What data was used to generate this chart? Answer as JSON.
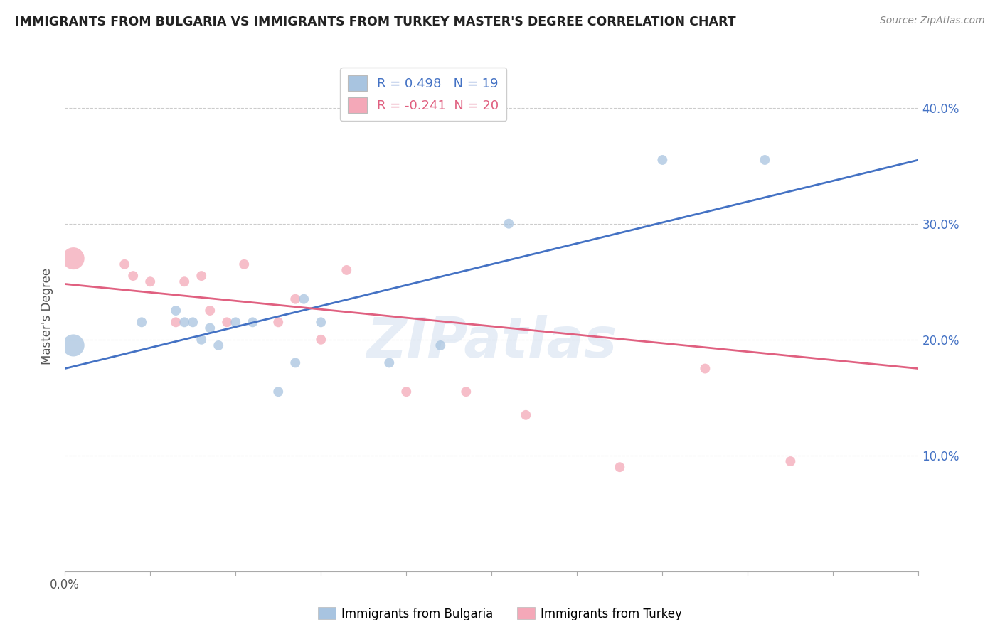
{
  "title": "IMMIGRANTS FROM BULGARIA VS IMMIGRANTS FROM TURKEY MASTER'S DEGREE CORRELATION CHART",
  "source": "Source: ZipAtlas.com",
  "ylabel": "Master's Degree",
  "xlim": [
    0.0,
    0.1
  ],
  "ylim": [
    0.0,
    0.44
  ],
  "bulgaria_color": "#a8c4e0",
  "turkey_color": "#f4a8b8",
  "bulgaria_line_color": "#4472c4",
  "turkey_line_color": "#e06080",
  "R_bulgaria": 0.498,
  "N_bulgaria": 19,
  "R_turkey": -0.241,
  "N_turkey": 20,
  "legend_label1": "Immigrants from Bulgaria",
  "legend_label2": "Immigrants from Turkey",
  "bulgaria_x": [
    0.001,
    0.009,
    0.013,
    0.014,
    0.015,
    0.016,
    0.017,
    0.018,
    0.02,
    0.022,
    0.025,
    0.027,
    0.028,
    0.03,
    0.038,
    0.044,
    0.052,
    0.07,
    0.082
  ],
  "bulgaria_y": [
    0.195,
    0.215,
    0.225,
    0.215,
    0.215,
    0.2,
    0.21,
    0.195,
    0.215,
    0.215,
    0.155,
    0.18,
    0.235,
    0.215,
    0.18,
    0.195,
    0.3,
    0.355,
    0.355
  ],
  "bulgaria_size": [
    500,
    100,
    100,
    100,
    100,
    100,
    100,
    100,
    100,
    100,
    100,
    100,
    100,
    100,
    100,
    100,
    100,
    100,
    100
  ],
  "turkey_x": [
    0.001,
    0.007,
    0.008,
    0.01,
    0.013,
    0.014,
    0.016,
    0.017,
    0.019,
    0.021,
    0.025,
    0.027,
    0.03,
    0.033,
    0.04,
    0.047,
    0.054,
    0.065,
    0.075,
    0.085
  ],
  "turkey_y": [
    0.27,
    0.265,
    0.255,
    0.25,
    0.215,
    0.25,
    0.255,
    0.225,
    0.215,
    0.265,
    0.215,
    0.235,
    0.2,
    0.26,
    0.155,
    0.155,
    0.135,
    0.09,
    0.175,
    0.095
  ],
  "turkey_size": [
    500,
    100,
    100,
    100,
    100,
    100,
    100,
    100,
    100,
    100,
    100,
    100,
    100,
    100,
    100,
    100,
    100,
    100,
    100,
    100
  ],
  "watermark": "ZIPatlas",
  "grid_color": "#cccccc",
  "background_color": "#ffffff",
  "ytick_values": [
    0.0,
    0.1,
    0.2,
    0.3,
    0.4
  ],
  "xtick_values": [
    0.0,
    0.01,
    0.02,
    0.03,
    0.04,
    0.05,
    0.06,
    0.07,
    0.08,
    0.09,
    0.1
  ],
  "blue_line_x0": 0.0,
  "blue_line_y0": 0.175,
  "blue_line_x1": 0.1,
  "blue_line_y1": 0.355,
  "pink_line_x0": 0.0,
  "pink_line_y0": 0.248,
  "pink_line_x1": 0.1,
  "pink_line_y1": 0.175
}
